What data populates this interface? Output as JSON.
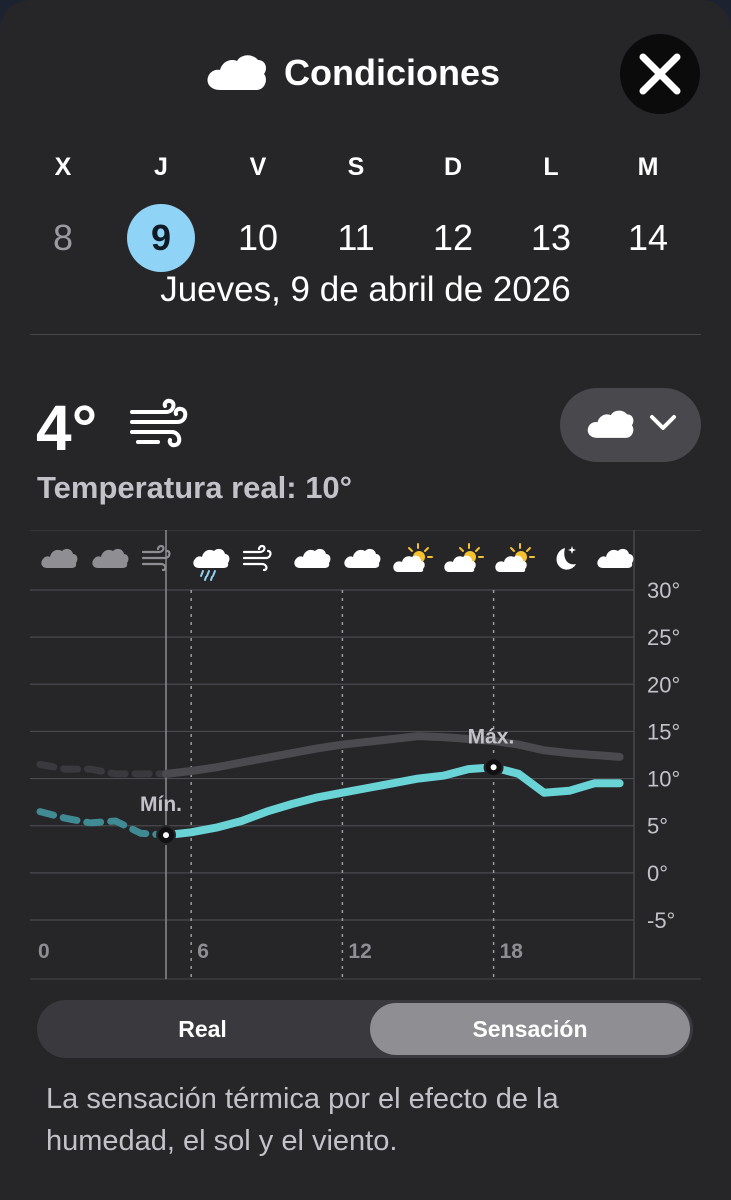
{
  "header": {
    "title": "Condiciones",
    "icon": "cloud-icon",
    "close_icon": "close-icon"
  },
  "days": [
    {
      "dow": "X",
      "num": "8",
      "state": "past"
    },
    {
      "dow": "J",
      "num": "9",
      "state": "selected"
    },
    {
      "dow": "V",
      "num": "10",
      "state": "normal"
    },
    {
      "dow": "S",
      "num": "11",
      "state": "normal"
    },
    {
      "dow": "D",
      "num": "12",
      "state": "normal"
    },
    {
      "dow": "L",
      "num": "13",
      "state": "normal"
    },
    {
      "dow": "M",
      "num": "14",
      "state": "normal"
    }
  ],
  "date_label": "Jueves, 9 de abril de 2026",
  "current": {
    "temperature": "4°",
    "condition_icon": "wind-icon",
    "real_temperature": "Temperatura real: 10°"
  },
  "layer_selector": {
    "icon": "cloud-icon",
    "chevron": "chevron-down-icon"
  },
  "chart_data": {
    "type": "line",
    "x_ticks": [
      "0",
      "6",
      "12",
      "18"
    ],
    "y_ticks": [
      "30°",
      "25°",
      "20°",
      "15°",
      "10°",
      "5°",
      "0°",
      "-5°"
    ],
    "ylim": [
      -5,
      30
    ],
    "xlim": [
      0,
      23
    ],
    "grid": true,
    "hourly_icons": [
      "cloud",
      "cloud",
      "wind",
      "rain",
      "wind",
      "cloud",
      "cloud",
      "partly-sunny",
      "partly-sunny",
      "partly-sunny",
      "moon-stars",
      "cloud"
    ],
    "now_hour": 5,
    "annotations": [
      {
        "label": "Mín.",
        "x": 5,
        "y": 4
      },
      {
        "label": "Máx.",
        "x": 18,
        "y": 11.2
      }
    ],
    "series": [
      {
        "style": "actual",
        "color": "#48484d",
        "x": [
          0,
          1,
          2,
          3,
          4,
          5,
          6,
          7,
          8,
          9,
          10,
          11,
          12,
          13,
          14,
          15,
          16,
          17,
          18,
          19,
          20,
          21,
          22,
          23
        ],
        "y": [
          11.5,
          11,
          11,
          10.5,
          10.5,
          10.5,
          10.8,
          11.2,
          11.7,
          12.2,
          12.7,
          13.2,
          13.6,
          13.9,
          14.2,
          14.5,
          14.4,
          14.2,
          14,
          13.6,
          13,
          12.7,
          12.5,
          12.3
        ]
      },
      {
        "style": "feels-like",
        "color": "#6ad3d6",
        "x": [
          0,
          1,
          2,
          3,
          4,
          5,
          6,
          7,
          8,
          9,
          10,
          11,
          12,
          13,
          14,
          15,
          16,
          17,
          18,
          19,
          20,
          21,
          22,
          23
        ],
        "y": [
          6.5,
          5.8,
          5.3,
          5.5,
          4.2,
          4,
          4.3,
          4.8,
          5.5,
          6.5,
          7.3,
          8,
          8.5,
          9,
          9.5,
          10,
          10.3,
          11,
          11.2,
          10.5,
          8.5,
          8.7,
          9.5,
          9.5
        ]
      }
    ]
  },
  "toggle": {
    "real_label": "Real",
    "feels_label": "Sensación",
    "selected": "Sensación"
  },
  "description": "La sensación térmica por el efecto de la humedad, el sol y el viento.",
  "colors": {
    "accent": "#8fd3f7",
    "background": "#262629",
    "feels_line": "#6ad3d6"
  }
}
